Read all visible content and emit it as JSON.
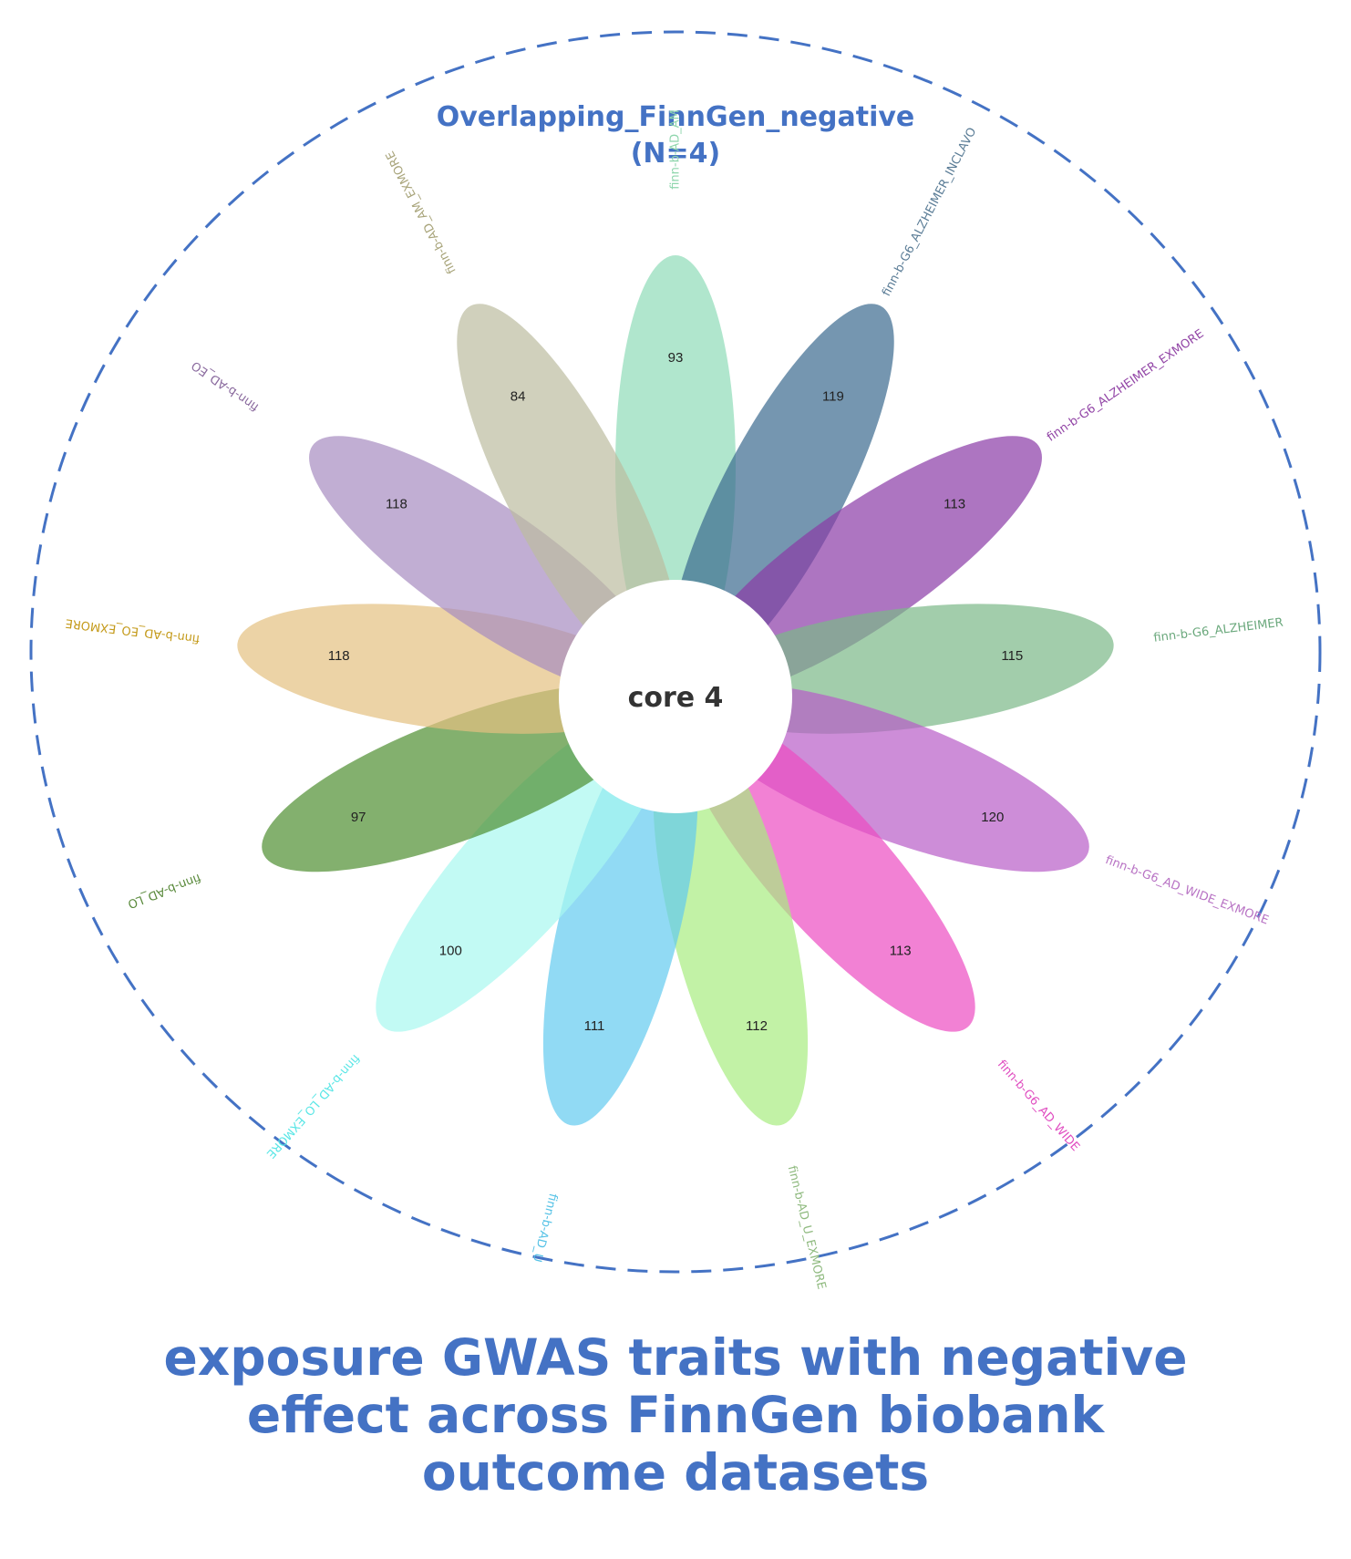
{
  "diagram": {
    "title_line1": "Overlapping_FinnGen_negative",
    "title_line2": "(N=4)",
    "core_label": "core 4",
    "border_color": "#4472c4",
    "petals": [
      {
        "label": "finn-b-AD_AM",
        "count": "93",
        "color": "#8fdcb8",
        "label_color": "#8fd6ad"
      },
      {
        "label": "finn-b-G6_ALZHEIMER_INCLAVO",
        "count": "119",
        "color": "#3a6a8f",
        "label_color": "#5a7c96"
      },
      {
        "label": "finn-b-G6_ALZHEIMER_EXMORE",
        "count": "113",
        "color": "#8a3aa6",
        "label_color": "#9245a6"
      },
      {
        "label": "finn-b-G6_ALZHEIMER",
        "count": "115",
        "color": "#7ab888",
        "label_color": "#6aa87c"
      },
      {
        "label": "finn-b-G6_AD_WIDE_EXMORE",
        "count": "120",
        "color": "#b85cc8",
        "label_color": "#b873c4"
      },
      {
        "label": "finn-b-G6_AD_WIDE",
        "count": "113",
        "color": "#ec4cc2",
        "label_color": "#e04cc0"
      },
      {
        "label": "finn-b-AD_U_EXMORE",
        "count": "112",
        "color": "#a8ec80",
        "label_color": "#8fba7f"
      },
      {
        "label": "finn-b-AD_U",
        "count": "111",
        "color": "#62caf0",
        "label_color": "#56c2e6"
      },
      {
        "label": "finn-b-AD_LO_EXMORE",
        "count": "100",
        "color": "#a8f8f0",
        "label_color": "#5ae6e6"
      },
      {
        "label": "finn-b-AD_LO",
        "count": "97",
        "color": "#4e8e30",
        "label_color": "#5a8a3c"
      },
      {
        "label": "finn-b-AD_EO_EXMORE",
        "count": "118",
        "color": "#e4c080",
        "label_color": "#c49a1a"
      },
      {
        "label": "finn-b-AD_EO",
        "count": "118",
        "color": "#a68cc0",
        "label_color": "#8a6a9e"
      },
      {
        "label": "finn-b-AD_AM_EXMORE",
        "count": "84",
        "color": "#bcbca0",
        "label_color": "#a8a47a"
      }
    ]
  },
  "caption": {
    "line1": "exposure GWAS traits with negative",
    "line2": "effect across FinnGen biobank",
    "line3": "outcome datasets"
  }
}
